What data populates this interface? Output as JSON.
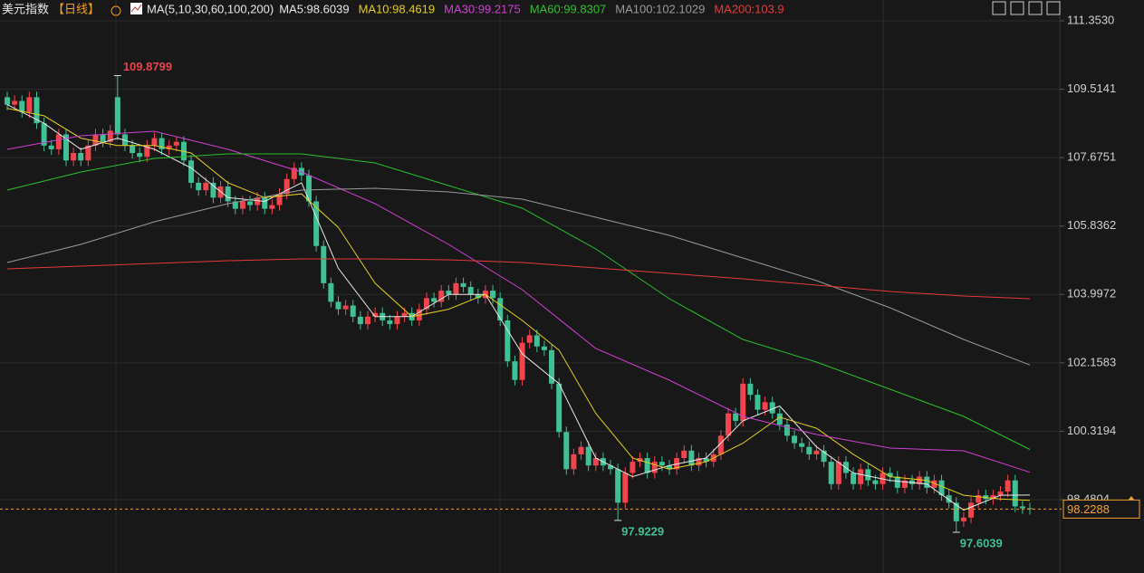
{
  "chart_data": {
    "type": "candlestick",
    "title": "美元指数",
    "period": "【日线】",
    "ma_label": "MA(5,10,30,60,100,200)",
    "up_color": "#f2444b",
    "down_color": "#3fc095",
    "ylim": [
      96.51,
      111.913
    ],
    "yticks": [
      {
        "value": 111.353,
        "label": "111.3530"
      },
      109.5141,
      107.6751,
      105.8362,
      103.9972,
      102.1583,
      100.3194,
      98.4804
    ],
    "grid": true,
    "open": [
      109.3,
      109.1,
      109.2,
      108.9,
      109.3,
      108.6,
      108.0,
      107.9,
      108.3,
      107.6,
      107.8,
      107.6,
      108.0,
      108.3,
      108.1,
      109.3,
      108.3,
      108.0,
      107.8,
      107.7,
      108.0,
      108.2,
      107.9,
      108.0,
      108.1,
      107.6,
      107.0,
      106.8,
      107.0,
      106.6,
      106.9,
      106.5,
      106.3,
      106.5,
      106.4,
      106.6,
      106.3,
      106.4,
      106.7,
      107.1,
      107.4,
      107.2,
      106.5,
      105.3,
      104.3,
      103.8,
      103.6,
      103.7,
      103.4,
      103.2,
      103.4,
      103.5,
      103.3,
      103.2,
      103.4,
      103.5,
      103.3,
      103.6,
      103.9,
      103.8,
      104.1,
      104.0,
      104.3,
      104.2,
      104.0,
      103.9,
      104.1,
      103.9,
      103.3,
      102.2,
      101.7,
      102.7,
      102.9,
      102.6,
      102.5,
      101.6,
      100.3,
      99.3,
      99.7,
      99.9,
      99.4,
      99.6,
      99.4,
      99.3,
      98.4,
      99.2,
      99.5,
      99.6,
      99.2,
      99.5,
      99.4,
      99.3,
      99.6,
      99.8,
      99.4,
      99.6,
      99.5,
      99.7,
      100.2,
      100.8,
      100.6,
      101.6,
      101.3,
      100.9,
      101.1,
      100.8,
      100.5,
      100.2,
      100.0,
      99.9,
      99.7,
      99.8,
      99.5,
      98.9,
      99.5,
      99.2,
      98.9,
      99.3,
      99.0,
      98.9,
      99.2,
      99.1,
      98.8,
      99.0,
      98.9,
      99.1,
      98.8,
      99.0,
      98.6,
      98.4,
      97.9,
      98.0,
      98.4,
      98.6,
      98.5,
      98.6,
      98.7,
      99.0,
      98.3,
      98.25
    ],
    "high": [
      109.45,
      109.35,
      109.35,
      109.45,
      109.45,
      108.75,
      108.15,
      108.45,
      108.45,
      107.95,
      107.95,
      108.15,
      108.45,
      108.45,
      108.55,
      109.8799,
      108.45,
      108.15,
      107.95,
      108.15,
      108.35,
      108.35,
      108.15,
      108.25,
      108.25,
      107.75,
      107.15,
      107.15,
      107.15,
      107.05,
      107.05,
      106.65,
      106.65,
      106.65,
      106.75,
      106.75,
      106.55,
      106.85,
      107.25,
      107.55,
      107.55,
      107.35,
      106.65,
      105.45,
      104.45,
      103.95,
      103.85,
      103.85,
      103.55,
      103.55,
      103.65,
      103.65,
      103.45,
      103.55,
      103.65,
      103.65,
      103.75,
      104.05,
      104.05,
      104.25,
      104.25,
      104.45,
      104.45,
      104.35,
      104.15,
      104.25,
      104.25,
      104.05,
      103.45,
      102.35,
      102.85,
      103.05,
      103.05,
      102.75,
      102.65,
      101.75,
      100.45,
      99.85,
      100.05,
      100.05,
      99.75,
      99.75,
      99.55,
      99.45,
      99.35,
      99.65,
      99.75,
      99.75,
      99.65,
      99.65,
      99.55,
      99.75,
      99.95,
      99.95,
      99.75,
      99.75,
      99.85,
      100.35,
      100.95,
      100.95,
      101.75,
      101.75,
      101.45,
      101.25,
      101.25,
      100.95,
      100.65,
      100.35,
      100.15,
      100.05,
      99.95,
      99.95,
      99.65,
      99.65,
      99.65,
      99.35,
      99.45,
      99.45,
      99.15,
      99.35,
      99.35,
      99.25,
      99.15,
      99.15,
      99.25,
      99.25,
      99.15,
      99.15,
      98.75,
      98.55,
      98.15,
      98.55,
      98.75,
      98.75,
      98.75,
      98.85,
      99.15,
      99.15,
      98.45,
      98.4
    ],
    "low": [
      108.95,
      108.95,
      108.75,
      108.75,
      108.45,
      107.85,
      107.75,
      107.75,
      107.45,
      107.45,
      107.45,
      107.45,
      107.85,
      107.95,
      107.95,
      108.15,
      107.85,
      107.65,
      107.55,
      107.55,
      107.85,
      107.75,
      107.75,
      107.85,
      107.45,
      106.85,
      106.65,
      106.65,
      106.45,
      106.45,
      106.35,
      106.15,
      106.15,
      106.25,
      106.25,
      106.15,
      106.15,
      106.25,
      106.55,
      106.95,
      107.05,
      106.35,
      105.15,
      104.15,
      103.65,
      103.45,
      103.45,
      103.25,
      103.05,
      103.05,
      103.25,
      103.15,
      103.05,
      103.05,
      103.25,
      103.15,
      103.15,
      103.45,
      103.65,
      103.65,
      103.85,
      103.85,
      104.05,
      103.85,
      103.75,
      103.75,
      103.75,
      103.15,
      102.05,
      101.55,
      101.55,
      102.55,
      102.45,
      102.35,
      101.45,
      100.15,
      99.15,
      99.15,
      99.55,
      99.25,
      99.25,
      99.25,
      99.15,
      97.9229,
      98.25,
      99.05,
      99.35,
      99.05,
      99.05,
      99.25,
      99.15,
      99.15,
      99.45,
      99.25,
      99.25,
      99.35,
      99.35,
      99.55,
      100.05,
      100.45,
      100.45,
      101.15,
      100.75,
      100.75,
      100.65,
      100.35,
      100.05,
      99.85,
      99.75,
      99.55,
      99.55,
      99.35,
      98.75,
      98.75,
      99.05,
      98.75,
      98.75,
      98.85,
      98.75,
      98.75,
      98.95,
      98.65,
      98.65,
      98.75,
      98.75,
      98.65,
      98.65,
      98.45,
      98.25,
      97.6039,
      97.75,
      97.85,
      98.25,
      98.35,
      98.35,
      98.45,
      98.55,
      98.15,
      98.1,
      98.08
    ],
    "close": [
      109.1,
      109.2,
      108.9,
      109.3,
      108.6,
      108.0,
      107.9,
      108.3,
      107.6,
      107.8,
      107.6,
      108.0,
      108.3,
      108.1,
      108.4,
      108.3,
      108.0,
      107.8,
      107.7,
      108.0,
      108.2,
      107.9,
      108.0,
      108.1,
      107.6,
      107.0,
      106.8,
      107.0,
      106.6,
      106.9,
      106.5,
      106.3,
      106.5,
      106.4,
      106.6,
      106.3,
      106.4,
      106.7,
      107.1,
      107.4,
      107.2,
      106.5,
      105.3,
      104.3,
      103.8,
      103.6,
      103.7,
      103.4,
      103.2,
      103.4,
      103.5,
      103.3,
      103.2,
      103.4,
      103.5,
      103.3,
      103.6,
      103.9,
      103.8,
      104.1,
      104.0,
      104.3,
      104.2,
      104.0,
      103.9,
      104.1,
      103.9,
      103.3,
      102.2,
      101.7,
      102.7,
      102.9,
      102.6,
      102.5,
      101.6,
      100.3,
      99.3,
      99.7,
      99.9,
      99.4,
      99.6,
      99.4,
      99.3,
      98.4,
      99.2,
      99.5,
      99.6,
      99.2,
      99.5,
      99.4,
      99.3,
      99.6,
      99.8,
      99.4,
      99.6,
      99.5,
      99.7,
      100.2,
      100.8,
      100.6,
      101.6,
      101.3,
      100.9,
      101.1,
      100.8,
      100.5,
      100.2,
      100.0,
      99.9,
      99.7,
      99.8,
      99.5,
      98.9,
      99.5,
      99.2,
      98.9,
      99.3,
      99.0,
      98.9,
      99.2,
      99.1,
      98.8,
      99.0,
      98.9,
      99.1,
      98.8,
      99.0,
      98.6,
      98.4,
      97.9,
      98.0,
      98.4,
      98.6,
      98.5,
      98.6,
      98.7,
      99.0,
      98.3,
      98.25,
      98.2288
    ],
    "series": [
      {
        "name": "MA5:98.6039",
        "color": "#e8e8e8",
        "x": [
          0,
          5,
          10,
          15,
          20,
          25,
          30,
          35,
          40,
          45,
          50,
          55,
          60,
          65,
          70,
          75,
          80,
          85,
          90,
          95,
          100,
          105,
          110,
          115,
          120,
          125,
          130,
          135,
          139
        ],
        "values": [
          109.1,
          108.6,
          107.9,
          108.2,
          107.9,
          107.4,
          106.6,
          106.5,
          107.0,
          104.7,
          103.4,
          103.4,
          104.0,
          104.0,
          102.4,
          101.6,
          99.6,
          99.1,
          99.4,
          99.6,
          100.6,
          101.0,
          99.9,
          99.2,
          99.0,
          98.9,
          98.2,
          98.6,
          98.6039
        ]
      },
      {
        "name": "MA10:98.4619",
        "color": "#e3cf1c",
        "x": [
          0,
          5,
          10,
          15,
          20,
          25,
          30,
          35,
          40,
          45,
          50,
          55,
          60,
          65,
          70,
          75,
          80,
          85,
          90,
          95,
          100,
          105,
          110,
          115,
          120,
          125,
          130,
          135,
          139
        ],
        "values": [
          109.0,
          108.8,
          108.2,
          108.0,
          108.0,
          107.8,
          107.0,
          106.6,
          106.7,
          105.8,
          104.3,
          103.4,
          103.6,
          104.0,
          103.3,
          102.5,
          100.8,
          99.6,
          99.3,
          99.5,
          100.0,
          100.7,
          100.4,
          99.7,
          99.1,
          99.0,
          98.6,
          98.5,
          98.4619
        ]
      },
      {
        "name": "MA30:99.2175",
        "color": "#d23fd6",
        "x": [
          0,
          10,
          20,
          30,
          40,
          50,
          60,
          70,
          80,
          90,
          100,
          110,
          120,
          130,
          139
        ],
        "values": [
          107.898,
          108.263,
          108.385,
          107.898,
          107.29,
          106.438,
          105.343,
          104.126,
          102.545,
          101.693,
          100.72,
          100.233,
          99.868,
          99.795,
          99.2175
        ]
      },
      {
        "name": "MA60:99.8307",
        "color": "#2cc12c",
        "x": [
          0,
          10,
          20,
          30,
          40,
          50,
          60,
          70,
          80,
          90,
          100,
          110,
          120,
          130,
          139
        ],
        "values": [
          106.803,
          107.29,
          107.655,
          107.776,
          107.776,
          107.533,
          106.925,
          106.316,
          105.221,
          103.883,
          102.788,
          102.18,
          101.449,
          100.72,
          99.8307
        ]
      },
      {
        "name": "MA100:102.1029",
        "color": "#9a9a9a",
        "x": [
          0,
          10,
          20,
          30,
          40,
          50,
          60,
          70,
          80,
          90,
          100,
          110,
          120,
          130,
          139
        ],
        "values": [
          104.856,
          105.343,
          105.951,
          106.438,
          106.803,
          106.852,
          106.754,
          106.56,
          106.073,
          105.586,
          104.978,
          104.37,
          103.64,
          102.788,
          102.1029
        ]
      },
      {
        "name": "MA200:103.9",
        "color": "#e8393a",
        "x": [
          0,
          10,
          20,
          30,
          40,
          50,
          60,
          70,
          80,
          90,
          100,
          110,
          120,
          130,
          139
        ],
        "values": [
          104.686,
          104.759,
          104.832,
          104.905,
          104.953,
          104.953,
          104.929,
          104.856,
          104.71,
          104.564,
          104.418,
          104.248,
          104.078,
          103.956,
          103.883
        ]
      }
    ]
  }
}
